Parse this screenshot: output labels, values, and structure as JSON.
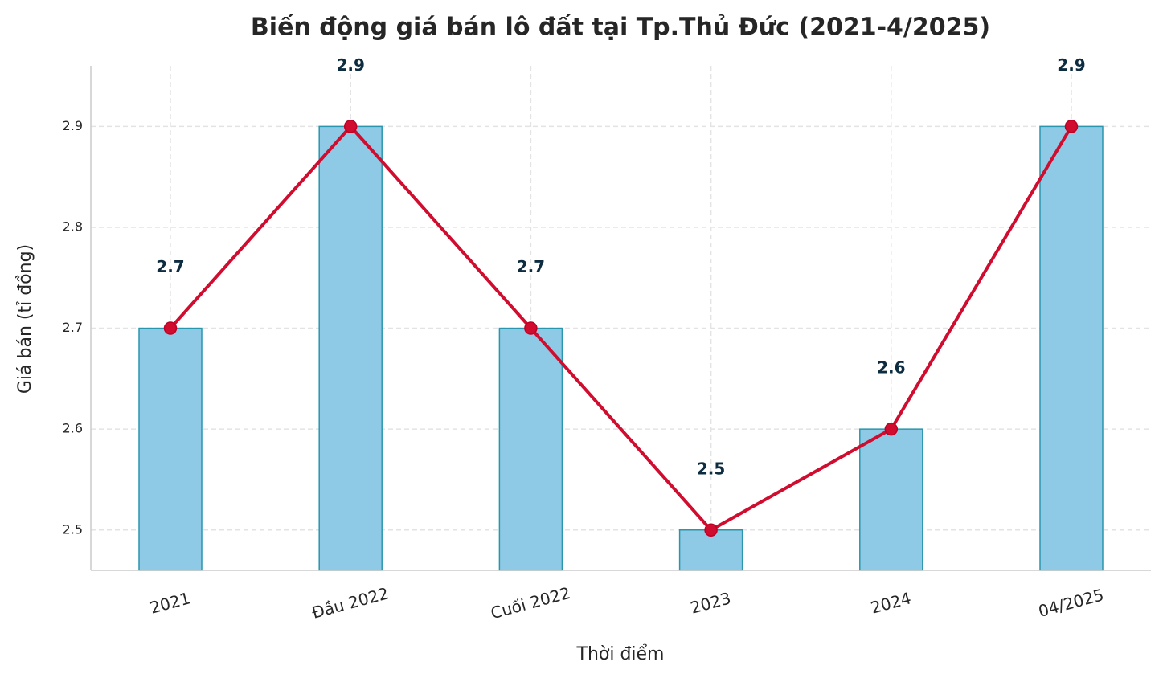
{
  "chart_data": {
    "type": "bar",
    "title": "Biến động giá bán lô đất tại Tp.Thủ Đức (2021-4/2025)",
    "x_label": "Thời điểm",
    "y_label": "Giá bán (tỉ đồng)",
    "categories": [
      "2021",
      "Đầu 2022",
      "Cuối 2022",
      "2023",
      "2024",
      "04/2025"
    ],
    "series": [
      {
        "type": "bar",
        "color": "#8ecae6",
        "values": [
          2.7,
          2.9,
          2.7,
          2.5,
          2.6,
          2.9
        ]
      },
      {
        "type": "line",
        "color": "#d00c2f",
        "values": [
          2.7,
          2.9,
          2.7,
          2.5,
          2.6,
          2.9
        ]
      }
    ],
    "ylim": [
      2.46,
      2.96
    ],
    "yticks": [
      2.5,
      2.6,
      2.7,
      2.8,
      2.9
    ],
    "grid": true
  }
}
